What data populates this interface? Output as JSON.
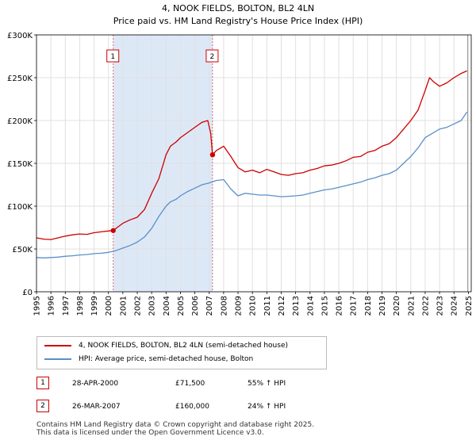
{
  "chart_data": {
    "type": "line",
    "title": "4, NOOK FIELDS, BOLTON, BL2 4LN",
    "subtitle": "Price paid vs. HM Land Registry's House Price Index (HPI)",
    "xlim": [
      1995,
      2025.2
    ],
    "ylim": [
      0,
      300000
    ],
    "x_ticks": [
      1995,
      1996,
      1997,
      1998,
      1999,
      2000,
      2001,
      2002,
      2003,
      2004,
      2005,
      2006,
      2007,
      2008,
      2009,
      2010,
      2011,
      2012,
      2013,
      2014,
      2015,
      2016,
      2017,
      2018,
      2019,
      2020,
      2021,
      2022,
      2023,
      2024,
      2025
    ],
    "y_ticks": [
      {
        "value": 0,
        "label": "£0"
      },
      {
        "value": 50000,
        "label": "£50K"
      },
      {
        "value": 100000,
        "label": "£100K"
      },
      {
        "value": 150000,
        "label": "£150K"
      },
      {
        "value": 200000,
        "label": "£200K"
      },
      {
        "value": 250000,
        "label": "£250K"
      },
      {
        "value": 300000,
        "label": "£300K"
      }
    ],
    "shaded_period": [
      2000.33,
      2007.23
    ],
    "colors": {
      "property": "#cc0000",
      "hpi": "#5b8fc9",
      "shade": "#dde8f7",
      "grid": "#e0e0e0"
    },
    "series": [
      {
        "name": "property",
        "x": [
          1995.0,
          1995.5,
          1996.0,
          1996.5,
          1997.0,
          1997.5,
          1998.0,
          1998.5,
          1999.0,
          1999.5,
          2000.0,
          2000.33,
          2000.6,
          2001.0,
          2001.5,
          2002.0,
          2002.5,
          2003.0,
          2003.5,
          2004.0,
          2004.3,
          2004.7,
          2005.0,
          2005.5,
          2006.0,
          2006.5,
          2006.9,
          2007.1,
          2007.23,
          2007.5,
          2008.0,
          2008.5,
          2009.0,
          2009.5,
          2010.0,
          2010.5,
          2011.0,
          2011.5,
          2012.0,
          2012.5,
          2013.0,
          2013.5,
          2014.0,
          2014.5,
          2015.0,
          2015.5,
          2016.0,
          2016.5,
          2017.0,
          2017.5,
          2018.0,
          2018.5,
          2019.0,
          2019.5,
          2020.0,
          2020.5,
          2021.0,
          2021.5,
          2022.0,
          2022.3,
          2022.6,
          2023.0,
          2023.5,
          2024.0,
          2024.5,
          2024.9
        ],
        "y": [
          63000,
          61500,
          61000,
          63000,
          65000,
          66500,
          67500,
          67000,
          69000,
          70000,
          71000,
          71500,
          75000,
          80000,
          84000,
          87000,
          96000,
          115000,
          132000,
          160000,
          170000,
          175000,
          180000,
          186000,
          192000,
          198000,
          200000,
          185000,
          160000,
          165000,
          170000,
          158000,
          145000,
          140000,
          142000,
          139000,
          143000,
          140000,
          137000,
          136000,
          138000,
          139000,
          142000,
          144000,
          147000,
          148000,
          150000,
          153000,
          157000,
          158000,
          163000,
          165000,
          170000,
          173000,
          180000,
          190000,
          200000,
          212000,
          235000,
          250000,
          245000,
          240000,
          244000,
          250000,
          255000,
          258000
        ]
      },
      {
        "name": "hpi",
        "x": [
          1995.0,
          1995.5,
          1996.0,
          1996.5,
          1997.0,
          1997.5,
          1998.0,
          1998.5,
          1999.0,
          1999.5,
          2000.0,
          2000.5,
          2001.0,
          2001.5,
          2002.0,
          2002.5,
          2003.0,
          2003.5,
          2004.0,
          2004.3,
          2004.7,
          2005.0,
          2005.5,
          2006.0,
          2006.5,
          2007.0,
          2007.5,
          2008.0,
          2008.5,
          2009.0,
          2009.5,
          2010.0,
          2010.5,
          2011.0,
          2011.5,
          2012.0,
          2012.5,
          2013.0,
          2013.5,
          2014.0,
          2014.5,
          2015.0,
          2015.5,
          2016.0,
          2016.5,
          2017.0,
          2017.5,
          2018.0,
          2018.5,
          2019.0,
          2019.5,
          2020.0,
          2020.5,
          2021.0,
          2021.5,
          2022.0,
          2022.5,
          2023.0,
          2023.5,
          2024.0,
          2024.5,
          2024.9
        ],
        "y": [
          40000,
          39500,
          40000,
          40500,
          41500,
          42000,
          43000,
          43500,
          44500,
          45000,
          46000,
          48000,
          51000,
          54000,
          58000,
          64000,
          74000,
          88000,
          100000,
          105000,
          108000,
          112000,
          117000,
          121000,
          125000,
          127000,
          130000,
          131000,
          120000,
          112000,
          115000,
          114000,
          113000,
          113000,
          112000,
          111000,
          111500,
          112000,
          113000,
          115000,
          117000,
          119000,
          120000,
          122000,
          124000,
          126000,
          128000,
          131000,
          133000,
          136000,
          138000,
          142000,
          150000,
          158000,
          168000,
          180000,
          185000,
          190000,
          192000,
          196000,
          200000,
          210000
        ]
      }
    ],
    "sales": [
      {
        "id": "1",
        "x": 2000.33,
        "y": 71500
      },
      {
        "id": "2",
        "x": 2007.23,
        "y": 160000
      }
    ],
    "legend": [
      {
        "series": "property",
        "label": "4, NOOK FIELDS, BOLTON, BL2 4LN (semi-detached house)"
      },
      {
        "series": "hpi",
        "label": "HPI: Average price, semi-detached house, Bolton"
      }
    ]
  },
  "sales_table": [
    {
      "num": "1",
      "date": "28-APR-2000",
      "price": "£71,500",
      "hpi": "55% ↑ HPI"
    },
    {
      "num": "2",
      "date": "26-MAR-2007",
      "price": "£160,000",
      "hpi": "24% ↑ HPI"
    }
  ],
  "footer": {
    "line1": "Contains HM Land Registry data © Crown copyright and database right 2025.",
    "line2": "This data is licensed under the Open Government Licence v3.0."
  }
}
